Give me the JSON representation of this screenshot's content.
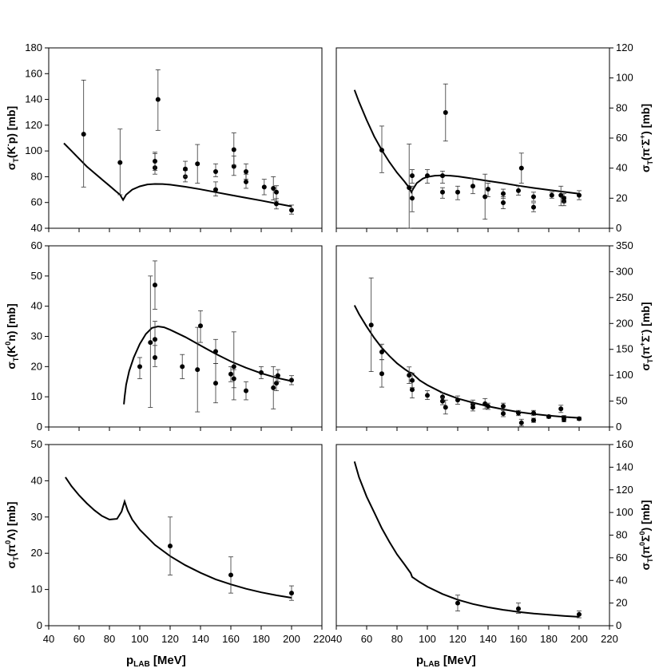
{
  "figure": {
    "xlabel_main": "p",
    "xlabel_sub": "LAB",
    "xlabel_unit": " [MeV]"
  },
  "chart_data": [
    {
      "type": "scatter",
      "panel": "top-left",
      "reaction": "K-p",
      "ylabel": {
        "base": "σ",
        "sub": "T",
        "open": "(K",
        "sup": "-",
        "rest": "p)",
        "unit": "[mb]"
      },
      "xlim": [
        40,
        220
      ],
      "ylim": [
        40,
        180
      ],
      "ystep": 20,
      "xstep": 20,
      "ytick_side": "left",
      "show_xticklabels": false,
      "curve": [
        [
          50,
          106
        ],
        [
          55,
          100
        ],
        [
          60,
          94
        ],
        [
          65,
          88
        ],
        [
          70,
          83
        ],
        [
          75,
          78
        ],
        [
          80,
          73
        ],
        [
          84,
          69
        ],
        [
          87,
          66
        ],
        [
          89,
          62
        ],
        [
          91,
          66
        ],
        [
          95,
          70
        ],
        [
          100,
          72.5
        ],
        [
          105,
          74
        ],
        [
          110,
          74.4
        ],
        [
          115,
          74.3
        ],
        [
          120,
          73.8
        ],
        [
          130,
          72.2
        ],
        [
          140,
          70.2
        ],
        [
          150,
          68
        ],
        [
          160,
          65.8
        ],
        [
          170,
          63.6
        ],
        [
          180,
          61.5
        ],
        [
          190,
          59.2
        ],
        [
          200,
          57
        ]
      ],
      "points": [
        {
          "x": 63,
          "y": 113,
          "lo": 72,
          "hi": 155
        },
        {
          "x": 87,
          "y": 91,
          "lo": 66,
          "hi": 117
        },
        {
          "x": 110,
          "y": 87,
          "lo": 82,
          "hi": 98
        },
        {
          "x": 110,
          "y": 92,
          "lo": 85,
          "hi": 99
        },
        {
          "x": 112,
          "y": 140,
          "lo": 116,
          "hi": 163
        },
        {
          "x": 130,
          "y": 80,
          "lo": 76,
          "hi": 85
        },
        {
          "x": 130,
          "y": 86,
          "lo": 80,
          "hi": 92
        },
        {
          "x": 138,
          "y": 90,
          "lo": 75,
          "hi": 105
        },
        {
          "x": 150,
          "y": 70,
          "lo": 65,
          "hi": 76
        },
        {
          "x": 150,
          "y": 84,
          "lo": 80,
          "hi": 90
        },
        {
          "x": 162,
          "y": 88,
          "lo": 81,
          "hi": 96
        },
        {
          "x": 162,
          "y": 101,
          "lo": 89,
          "hi": 114
        },
        {
          "x": 170,
          "y": 76,
          "lo": 71,
          "hi": 82
        },
        {
          "x": 170,
          "y": 84,
          "lo": 78,
          "hi": 90
        },
        {
          "x": 182,
          "y": 72,
          "lo": 66,
          "hi": 78
        },
        {
          "x": 188,
          "y": 71,
          "lo": 62,
          "hi": 80
        },
        {
          "x": 190,
          "y": 68,
          "lo": 61,
          "hi": 73
        },
        {
          "x": 190,
          "y": 59,
          "lo": 55,
          "hi": 63
        },
        {
          "x": 200,
          "y": 54,
          "lo": 51,
          "hi": 58
        }
      ]
    },
    {
      "type": "scatter",
      "panel": "top-right",
      "reaction": "pi-Sigma+",
      "ylabel": {
        "base": "σ",
        "sub": "T",
        "open": "(π",
        "sup": "-",
        "rest": "Σ",
        "sup2": "+",
        "close": ")",
        "unit": "[mb]"
      },
      "xlim": [
        40,
        220
      ],
      "ylim": [
        0,
        120
      ],
      "ystep": 20,
      "xstep": 20,
      "ytick_side": "right",
      "show_xticklabels": false,
      "curve": [
        [
          52,
          92
        ],
        [
          55,
          84
        ],
        [
          60,
          72
        ],
        [
          65,
          61
        ],
        [
          70,
          52
        ],
        [
          75,
          44
        ],
        [
          80,
          37
        ],
        [
          85,
          31
        ],
        [
          88,
          27
        ],
        [
          89.5,
          24
        ],
        [
          90.5,
          26
        ],
        [
          93,
          30
        ],
        [
          97,
          33
        ],
        [
          100,
          34.2
        ],
        [
          105,
          35
        ],
        [
          110,
          35.2
        ],
        [
          115,
          35
        ],
        [
          120,
          34.5
        ],
        [
          130,
          33
        ],
        [
          140,
          31.5
        ],
        [
          150,
          30
        ],
        [
          160,
          28.3
        ],
        [
          170,
          26.8
        ],
        [
          180,
          25.5
        ],
        [
          190,
          24.2
        ],
        [
          200,
          23
        ]
      ],
      "points": [
        {
          "x": 70,
          "y": 52,
          "lo": 37,
          "hi": 68
        },
        {
          "x": 88,
          "y": 27,
          "lo": 0,
          "hi": 56
        },
        {
          "x": 90,
          "y": 20,
          "lo": 11,
          "hi": 28
        },
        {
          "x": 90,
          "y": 35,
          "lo": 30,
          "hi": 39
        },
        {
          "x": 100,
          "y": 35,
          "lo": 30,
          "hi": 39
        },
        {
          "x": 110,
          "y": 24,
          "lo": 20,
          "hi": 27
        },
        {
          "x": 110,
          "y": 35,
          "lo": 30,
          "hi": 38
        },
        {
          "x": 112,
          "y": 77,
          "lo": 58,
          "hi": 96
        },
        {
          "x": 120,
          "y": 24,
          "lo": 19,
          "hi": 28
        },
        {
          "x": 130,
          "y": 28,
          "lo": 23,
          "hi": 33
        },
        {
          "x": 138,
          "y": 21,
          "lo": 6,
          "hi": 36
        },
        {
          "x": 140,
          "y": 26,
          "lo": 21,
          "hi": 30
        },
        {
          "x": 150,
          "y": 17,
          "lo": 13,
          "hi": 21
        },
        {
          "x": 150,
          "y": 23,
          "lo": 20,
          "hi": 26
        },
        {
          "x": 160,
          "y": 25,
          "lo": 22,
          "hi": 28
        },
        {
          "x": 162,
          "y": 40,
          "lo": 30,
          "hi": 50
        },
        {
          "x": 170,
          "y": 14,
          "lo": 11,
          "hi": 17
        },
        {
          "x": 170,
          "y": 21,
          "lo": 18,
          "hi": 24
        },
        {
          "x": 182,
          "y": 22,
          "lo": 20,
          "hi": 24
        },
        {
          "x": 188,
          "y": 22,
          "lo": 15,
          "hi": 28
        },
        {
          "x": 190,
          "y": 18,
          "lo": 15,
          "hi": 21
        },
        {
          "x": 190,
          "y": 20,
          "lo": 17,
          "hi": 23
        },
        {
          "x": 200,
          "y": 22,
          "lo": 19,
          "hi": 25
        }
      ]
    },
    {
      "type": "scatter",
      "panel": "middle-left",
      "reaction": "K0n",
      "ylabel": {
        "base": "σ",
        "sub": "T",
        "open": "(K",
        "sup": "0",
        "rest": "n)",
        "unit": "[mb]"
      },
      "xlim": [
        40,
        220
      ],
      "ylim": [
        0,
        60
      ],
      "ystep": 10,
      "xstep": 20,
      "ytick_side": "left",
      "show_xticklabels": false,
      "curve": [
        [
          89.5,
          7.5
        ],
        [
          90,
          10
        ],
        [
          91,
          14
        ],
        [
          93,
          18.5
        ],
        [
          96,
          23
        ],
        [
          100,
          27.5
        ],
        [
          104,
          30.8
        ],
        [
          108,
          32.8
        ],
        [
          112,
          33.3
        ],
        [
          116,
          33
        ],
        [
          120,
          32.2
        ],
        [
          130,
          29.8
        ],
        [
          140,
          27
        ],
        [
          150,
          24.2
        ],
        [
          160,
          21.7
        ],
        [
          170,
          19.6
        ],
        [
          180,
          17.8
        ],
        [
          190,
          16.3
        ],
        [
          200,
          15.2
        ]
      ],
      "points": [
        {
          "x": 100,
          "y": 20,
          "lo": 16,
          "hi": 23
        },
        {
          "x": 107,
          "y": 28,
          "lo": 6.5,
          "hi": 50
        },
        {
          "x": 110,
          "y": 47,
          "lo": 39,
          "hi": 55
        },
        {
          "x": 110,
          "y": 29,
          "lo": 23,
          "hi": 35
        },
        {
          "x": 110,
          "y": 23,
          "lo": 20,
          "hi": 27
        },
        {
          "x": 128,
          "y": 20,
          "lo": 16,
          "hi": 24
        },
        {
          "x": 138,
          "y": 19,
          "lo": 5,
          "hi": 33
        },
        {
          "x": 140,
          "y": 33.5,
          "lo": 28,
          "hi": 38.5
        },
        {
          "x": 150,
          "y": 25,
          "lo": 21,
          "hi": 29
        },
        {
          "x": 150,
          "y": 14.5,
          "lo": 8,
          "hi": 21
        },
        {
          "x": 160,
          "y": 17.5,
          "lo": 15,
          "hi": 20
        },
        {
          "x": 162,
          "y": 20,
          "lo": 9,
          "hi": 31.5
        },
        {
          "x": 162,
          "y": 16,
          "lo": 13,
          "hi": 19
        },
        {
          "x": 170,
          "y": 12,
          "lo": 9,
          "hi": 15
        },
        {
          "x": 180,
          "y": 18,
          "lo": 16,
          "hi": 20
        },
        {
          "x": 188,
          "y": 13,
          "lo": 6,
          "hi": 20
        },
        {
          "x": 190,
          "y": 14.5,
          "lo": 12,
          "hi": 17
        },
        {
          "x": 191,
          "y": 17,
          "lo": 15,
          "hi": 19
        },
        {
          "x": 200,
          "y": 15.5,
          "lo": 14,
          "hi": 17
        }
      ]
    },
    {
      "type": "scatter",
      "panel": "middle-right",
      "reaction": "pi+Sigma-",
      "ylabel": {
        "base": "σ",
        "sub": "T",
        "open": "(π",
        "sup": "+",
        "rest": "Σ",
        "sup2": "-",
        "close": ")",
        "unit": "[mb]"
      },
      "xlim": [
        40,
        220
      ],
      "ylim": [
        0,
        350
      ],
      "ystep": 50,
      "xstep": 20,
      "ytick_side": "right",
      "show_xticklabels": false,
      "curve": [
        [
          52,
          235
        ],
        [
          55,
          218
        ],
        [
          60,
          194
        ],
        [
          65,
          172
        ],
        [
          70,
          153
        ],
        [
          75,
          137
        ],
        [
          80,
          123
        ],
        [
          85,
          112
        ],
        [
          88,
          106
        ],
        [
          90,
          104
        ],
        [
          92,
          98
        ],
        [
          95,
          90
        ],
        [
          100,
          81
        ],
        [
          110,
          66
        ],
        [
          120,
          55
        ],
        [
          130,
          47
        ],
        [
          140,
          40
        ],
        [
          150,
          34
        ],
        [
          160,
          29
        ],
        [
          170,
          25
        ],
        [
          180,
          22
        ],
        [
          190,
          19.5
        ],
        [
          200,
          17.5
        ]
      ],
      "points": [
        {
          "x": 63,
          "y": 197,
          "lo": 107,
          "hi": 288
        },
        {
          "x": 70,
          "y": 103,
          "lo": 77,
          "hi": 130
        },
        {
          "x": 70,
          "y": 145,
          "lo": 130,
          "hi": 160
        },
        {
          "x": 88,
          "y": 100,
          "lo": 84,
          "hi": 116
        },
        {
          "x": 90,
          "y": 72,
          "lo": 56,
          "hi": 88
        },
        {
          "x": 90,
          "y": 90,
          "lo": 76,
          "hi": 104
        },
        {
          "x": 100,
          "y": 61,
          "lo": 53,
          "hi": 70
        },
        {
          "x": 110,
          "y": 58,
          "lo": 50,
          "hi": 66
        },
        {
          "x": 110,
          "y": 50,
          "lo": 43,
          "hi": 57
        },
        {
          "x": 112,
          "y": 38,
          "lo": 25,
          "hi": 52
        },
        {
          "x": 120,
          "y": 52,
          "lo": 44,
          "hi": 60
        },
        {
          "x": 130,
          "y": 44,
          "lo": 36,
          "hi": 52
        },
        {
          "x": 130,
          "y": 38,
          "lo": 31,
          "hi": 45
        },
        {
          "x": 138,
          "y": 45,
          "lo": 35,
          "hi": 55
        },
        {
          "x": 140,
          "y": 40,
          "lo": 34,
          "hi": 46
        },
        {
          "x": 150,
          "y": 40,
          "lo": 34,
          "hi": 46
        },
        {
          "x": 150,
          "y": 26,
          "lo": 20,
          "hi": 32
        },
        {
          "x": 160,
          "y": 27,
          "lo": 22,
          "hi": 32
        },
        {
          "x": 162,
          "y": 8,
          "lo": 2,
          "hi": 15
        },
        {
          "x": 170,
          "y": 27,
          "lo": 22,
          "hi": 32
        },
        {
          "x": 170,
          "y": 13,
          "lo": 9,
          "hi": 17
        },
        {
          "x": 180,
          "y": 20,
          "lo": 17,
          "hi": 23
        },
        {
          "x": 188,
          "y": 35,
          "lo": 28,
          "hi": 42
        },
        {
          "x": 190,
          "y": 14,
          "lo": 10,
          "hi": 18
        },
        {
          "x": 190,
          "y": 18,
          "lo": 14,
          "hi": 22
        },
        {
          "x": 200,
          "y": 16,
          "lo": 13,
          "hi": 19
        }
      ]
    },
    {
      "type": "scatter",
      "panel": "bottom-left",
      "reaction": "pi0Lambda",
      "ylabel": {
        "base": "σ",
        "sub": "T",
        "open": "(π",
        "sup": "0",
        "rest": "Λ",
        "close": ")",
        "unit": "[mb]"
      },
      "xlim": [
        40,
        220
      ],
      "ylim": [
        0,
        50
      ],
      "ystep": 10,
      "xstep": 20,
      "ytick_side": "left",
      "show_xticklabels": true,
      "curve": [
        [
          51,
          41
        ],
        [
          55,
          38.5
        ],
        [
          60,
          36
        ],
        [
          65,
          33.8
        ],
        [
          70,
          31.9
        ],
        [
          75,
          30.3
        ],
        [
          80,
          29.3
        ],
        [
          85,
          29.5
        ],
        [
          88,
          31.5
        ],
        [
          90,
          34.3
        ],
        [
          92,
          31.8
        ],
        [
          95,
          29.3
        ],
        [
          100,
          26.5
        ],
        [
          110,
          22.3
        ],
        [
          120,
          19.2
        ],
        [
          130,
          16.7
        ],
        [
          140,
          14.6
        ],
        [
          150,
          12.8
        ],
        [
          160,
          11.4
        ],
        [
          170,
          10.2
        ],
        [
          180,
          9.2
        ],
        [
          190,
          8.4
        ],
        [
          200,
          7.7
        ]
      ],
      "points": [
        {
          "x": 120,
          "y": 22,
          "lo": 14,
          "hi": 30
        },
        {
          "x": 160,
          "y": 14,
          "lo": 9,
          "hi": 19
        },
        {
          "x": 200,
          "y": 9,
          "lo": 7,
          "hi": 11
        }
      ]
    },
    {
      "type": "scatter",
      "panel": "bottom-right",
      "reaction": "pi0Sigma0",
      "ylabel": {
        "base": "σ",
        "sub": "T",
        "open": "(π",
        "sup": "0",
        "rest": "Σ",
        "sup2": "0",
        "close": ")",
        "unit": "[mb]"
      },
      "xlim": [
        40,
        220
      ],
      "ylim": [
        0,
        160
      ],
      "ystep": 20,
      "xstep": 20,
      "ytick_side": "right",
      "show_xticklabels": true,
      "curve": [
        [
          52,
          145
        ],
        [
          55,
          131
        ],
        [
          60,
          114
        ],
        [
          65,
          100
        ],
        [
          70,
          86
        ],
        [
          75,
          74
        ],
        [
          80,
          63
        ],
        [
          85,
          54
        ],
        [
          89,
          46.5
        ],
        [
          90,
          43
        ],
        [
          95,
          38.5
        ],
        [
          100,
          34.5
        ],
        [
          110,
          28
        ],
        [
          120,
          23
        ],
        [
          130,
          19.2
        ],
        [
          140,
          16.3
        ],
        [
          150,
          14
        ],
        [
          160,
          12.2
        ],
        [
          170,
          10.8
        ],
        [
          180,
          9.7
        ],
        [
          190,
          8.7
        ],
        [
          200,
          7.8
        ]
      ],
      "points": [
        {
          "x": 120,
          "y": 20,
          "lo": 13,
          "hi": 27
        },
        {
          "x": 160,
          "y": 15,
          "lo": 11,
          "hi": 20
        },
        {
          "x": 200,
          "y": 10,
          "lo": 7,
          "hi": 13
        }
      ]
    }
  ]
}
